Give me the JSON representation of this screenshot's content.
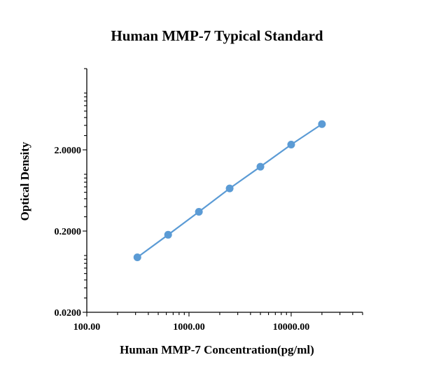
{
  "chart_data": {
    "type": "scatter",
    "title": "Human MMP-7 Typical Standard",
    "xlabel": "Human MMP-7 Concentration(pg/ml)",
    "ylabel": "Optical Density",
    "x_scale": "log",
    "y_scale": "log",
    "xlim": [
      100,
      50000
    ],
    "ylim": [
      0.02,
      20
    ],
    "x_ticks": [
      "100.00",
      "1000.00",
      "10000.00"
    ],
    "y_ticks": [
      "0.0200",
      "0.2000",
      "2.0000"
    ],
    "grid": false,
    "legend": "none",
    "series": [
      {
        "x": [
          312.5,
          625,
          1250,
          2500,
          5000,
          10000,
          20000
        ],
        "y": [
          0.095,
          0.18,
          0.345,
          0.67,
          1.24,
          2.32,
          4.15
        ],
        "color": "#5B9BD5",
        "marker": "circle"
      }
    ]
  }
}
